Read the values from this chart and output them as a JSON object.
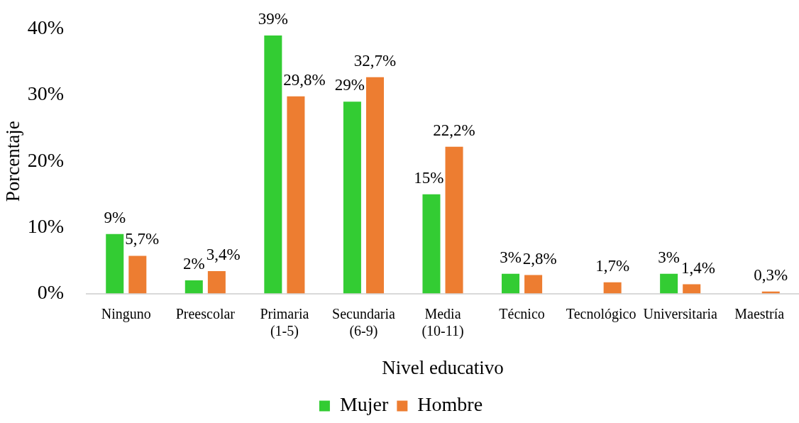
{
  "chart_data": {
    "type": "bar",
    "categories": [
      "Ninguno",
      "Preescolar",
      "Primaria\n(1-5)",
      "Secundaria\n(6-9)",
      "Media\n(10-11)",
      "Técnico",
      "Tecnológico",
      "Universitaria",
      "Maestría"
    ],
    "series": [
      {
        "name": "Mujer",
        "color": "#33cc33",
        "values": [
          9,
          2,
          39,
          29,
          15,
          3,
          null,
          3,
          null
        ],
        "value_labels": [
          "9%",
          "2%",
          "39%",
          "29%",
          "15%",
          "3%",
          null,
          "3%",
          null
        ]
      },
      {
        "name": "Hombre",
        "color": "#ed7d31",
        "values": [
          5.7,
          3.4,
          29.8,
          32.7,
          22.2,
          2.8,
          1.7,
          1.4,
          0.3
        ],
        "value_labels": [
          "5,7%",
          "3,4%",
          "29,8%",
          "32,7%",
          "22,2%",
          "2,8%",
          "1,7%",
          "1,4%",
          "0,3%"
        ]
      }
    ],
    "xlabel": "Nivel educativo",
    "ylabel": "Porcentaje",
    "ylim": [
      0,
      40
    ],
    "yticks": [
      {
        "value": 0,
        "label": "0%"
      },
      {
        "value": 10,
        "label": "10%"
      },
      {
        "value": 20,
        "label": "20%"
      },
      {
        "value": 30,
        "label": "30%"
      },
      {
        "value": 40,
        "label": "40%"
      }
    ],
    "grid": false,
    "legend": "bottom"
  }
}
